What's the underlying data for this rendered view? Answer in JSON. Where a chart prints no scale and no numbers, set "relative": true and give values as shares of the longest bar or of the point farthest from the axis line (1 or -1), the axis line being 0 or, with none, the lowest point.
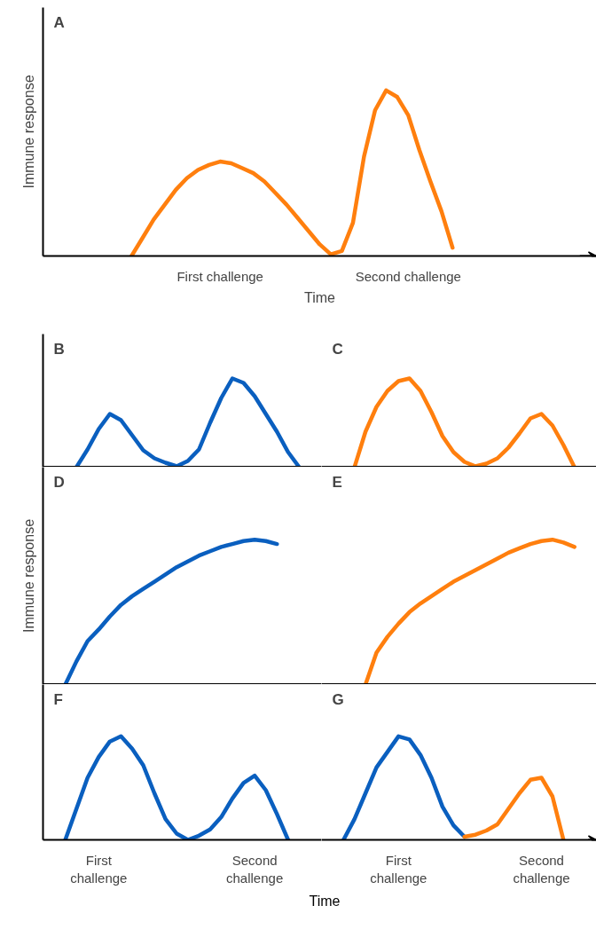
{
  "chart_data": [
    {
      "type": "line",
      "title": "A",
      "xlabel": "Time",
      "ylabel": "Immune response",
      "relative": true,
      "categories": [
        null,
        null,
        null,
        null,
        null,
        null,
        null,
        null,
        null,
        null,
        null,
        null,
        null,
        null,
        null,
        null,
        "First challenge",
        null,
        null,
        null,
        null,
        null,
        null,
        null,
        null,
        null,
        null,
        null,
        null,
        null,
        null,
        null,
        null,
        "Second challenge",
        null,
        null,
        null,
        null,
        null,
        null,
        null,
        null,
        null,
        null,
        null,
        null,
        null,
        null,
        null,
        null,
        null
      ],
      "tick_labels": "x",
      "grid": false,
      "marker": "none",
      "line_style": "solid",
      "series": [
        {
          "color": "#ff7f0e",
          "values": [
            null,
            null,
            null,
            null,
            null,
            null,
            null,
            null,
            0,
            0.11,
            0.22,
            0.31,
            0.4,
            0.47,
            0.52,
            0.55,
            0.57,
            0.56,
            0.53,
            0.5,
            0.45,
            0.38,
            0.31,
            0.23,
            0.15,
            0.07,
            0.01,
            0.03,
            0.2,
            0.6,
            0.88,
            1,
            0.96,
            0.85,
            0.64,
            0.45,
            0.27,
            0.05,
            null,
            null,
            null,
            null,
            null,
            null,
            null,
            null,
            null,
            null,
            null,
            null,
            null
          ]
        }
      ]
    },
    {
      "type": "line",
      "title": "B",
      "relative": true,
      "categories": [
        null,
        null,
        null,
        null,
        null,
        null,
        null,
        null,
        null,
        null,
        null,
        null,
        null,
        null,
        null,
        null,
        null,
        null,
        null,
        null,
        null,
        null,
        null,
        null,
        null,
        null
      ],
      "tick_labels": false,
      "grid": false,
      "marker": "none",
      "line_style": "solid",
      "series": [
        {
          "color": "#0a5fbf",
          "values": [
            null,
            null,
            null,
            0,
            0.2,
            0.43,
            0.6,
            0.53,
            0.36,
            0.19,
            0.1,
            0.05,
            0.01,
            0.07,
            0.2,
            0.5,
            0.78,
            1,
            0.95,
            0.8,
            0.6,
            0.4,
            0.17,
            0,
            null,
            null
          ]
        }
      ]
    },
    {
      "type": "line",
      "title": "C",
      "relative": true,
      "categories": [
        null,
        null,
        null,
        null,
        null,
        null,
        null,
        null,
        null,
        null,
        null,
        null,
        null,
        null,
        null,
        null,
        null,
        null,
        null,
        null,
        null,
        null,
        null,
        null,
        null,
        null
      ],
      "tick_labels": false,
      "grid": false,
      "marker": "none",
      "line_style": "solid",
      "series": [
        {
          "color": "#ff7f0e",
          "values": [
            null,
            null,
            null,
            0,
            0.4,
            0.68,
            0.86,
            0.97,
            1,
            0.86,
            0.62,
            0.35,
            0.17,
            0.06,
            0.01,
            0.04,
            0.1,
            0.22,
            0.38,
            0.55,
            0.6,
            0.47,
            0.25,
            0,
            null,
            null
          ]
        }
      ]
    },
    {
      "type": "line",
      "title": "D",
      "ylabel": "Immune response",
      "relative": true,
      "categories": [
        null,
        null,
        null,
        null,
        null,
        null,
        null,
        null,
        null,
        null,
        null,
        null,
        null,
        null,
        null,
        null,
        null,
        null,
        null,
        null,
        null,
        null,
        null,
        null,
        null,
        null
      ],
      "tick_labels": false,
      "grid": false,
      "marker": "none",
      "line_style": "solid",
      "series": [
        {
          "color": "#0a5fbf",
          "values": [
            null,
            null,
            0,
            0.16,
            0.3,
            0.38,
            0.47,
            0.55,
            0.61,
            0.66,
            0.71,
            0.76,
            0.81,
            0.85,
            0.89,
            0.92,
            0.95,
            0.97,
            0.99,
            1,
            0.99,
            0.97,
            null,
            null,
            null,
            null
          ]
        }
      ]
    },
    {
      "type": "line",
      "title": "E",
      "relative": true,
      "categories": [
        null,
        null,
        null,
        null,
        null,
        null,
        null,
        null,
        null,
        null,
        null,
        null,
        null,
        null,
        null,
        null,
        null,
        null,
        null,
        null,
        null,
        null,
        null,
        null,
        null,
        null
      ],
      "tick_labels": false,
      "grid": false,
      "marker": "none",
      "line_style": "solid",
      "series": [
        {
          "color": "#ff7f0e",
          "values": [
            null,
            null,
            null,
            null,
            0,
            0.22,
            0.33,
            0.42,
            0.5,
            0.56,
            0.61,
            0.66,
            0.71,
            0.75,
            0.79,
            0.83,
            0.87,
            0.91,
            0.94,
            0.97,
            0.99,
            1,
            0.98,
            0.95,
            null,
            null
          ]
        }
      ]
    },
    {
      "type": "line",
      "title": "F",
      "xlabel": "Time",
      "relative": true,
      "categories": [
        null,
        null,
        null,
        null,
        null,
        "First challenge",
        null,
        null,
        null,
        null,
        null,
        null,
        null,
        null,
        null,
        null,
        null,
        null,
        null,
        "Second challenge",
        null,
        null,
        null,
        null,
        null,
        null
      ],
      "tick_labels": "x",
      "grid": false,
      "marker": "none",
      "line_style": "solid",
      "series": [
        {
          "color": "#0a5fbf",
          "values": [
            null,
            null,
            0,
            0.3,
            0.6,
            0.8,
            0.95,
            1,
            0.88,
            0.72,
            0.45,
            0.2,
            0.06,
            0,
            0.04,
            0.1,
            0.22,
            0.4,
            0.55,
            0.62,
            0.48,
            0.25,
            0,
            null,
            null,
            null
          ]
        }
      ]
    },
    {
      "type": "line",
      "title": "G",
      "relative": true,
      "categories": [
        null,
        null,
        null,
        null,
        null,
        null,
        null,
        "First challenge",
        null,
        null,
        null,
        null,
        null,
        null,
        null,
        null,
        null,
        null,
        null,
        null,
        "Second challenge",
        null,
        null,
        null,
        null,
        null
      ],
      "tick_labels": "x",
      "grid": false,
      "marker": "none",
      "line_style": "solid",
      "series": [
        {
          "color": "#0a5fbf",
          "values": [
            null,
            null,
            0,
            0.2,
            0.45,
            0.7,
            0.85,
            1,
            0.97,
            0.82,
            0.6,
            0.32,
            0.14,
            0.03,
            null,
            null,
            null,
            null,
            null,
            null,
            null,
            null,
            null,
            null,
            null,
            null
          ]
        },
        {
          "color": "#ff7f0e",
          "values": [
            null,
            null,
            null,
            null,
            null,
            null,
            null,
            null,
            null,
            null,
            null,
            null,
            null,
            0.03,
            0.05,
            0.09,
            0.15,
            0.3,
            0.45,
            0.58,
            0.6,
            0.42,
            0,
            null,
            null,
            null
          ]
        }
      ]
    }
  ]
}
